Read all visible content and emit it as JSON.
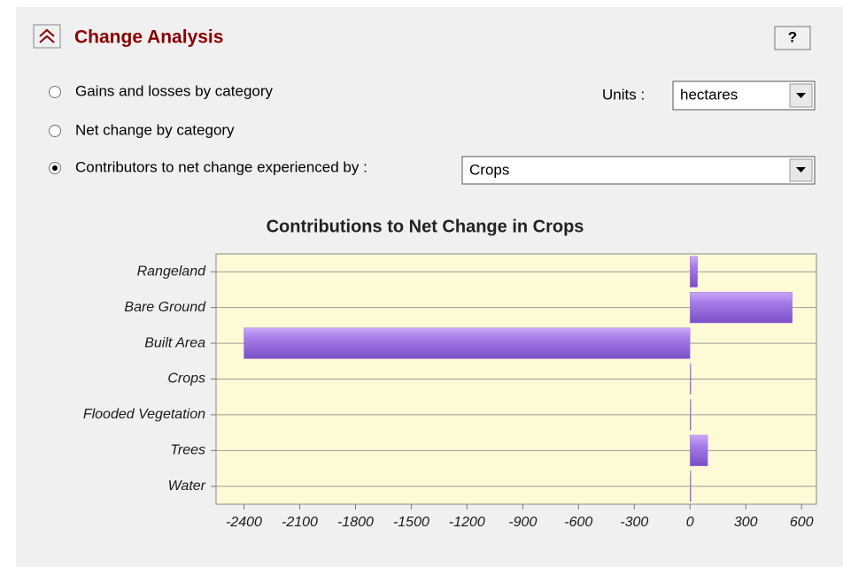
{
  "panel": {
    "title": "Change Analysis",
    "help": "?",
    "options": [
      "Gains and losses by category",
      "Net change by category",
      "Contributors to net change experienced by :"
    ],
    "selected_option": 2,
    "units_label": "Units :",
    "units_value": "hectares",
    "category_value": "Crops"
  },
  "chart_data": {
    "type": "hbar",
    "title": "Contributions to Net Change in Crops",
    "categories": [
      "Rangeland",
      "Bare Ground",
      "Built Area",
      "Crops",
      "Flooded Vegetation",
      "Trees",
      "Water"
    ],
    "values": [
      40,
      550,
      -2400,
      0,
      3,
      95,
      2
    ],
    "color": "#a57be8",
    "xlim": [
      -2550,
      680
    ],
    "xticks": [
      -2400,
      -2100,
      -1800,
      -1500,
      -1200,
      -900,
      -600,
      -300,
      0,
      300,
      600
    ],
    "grid": true
  }
}
